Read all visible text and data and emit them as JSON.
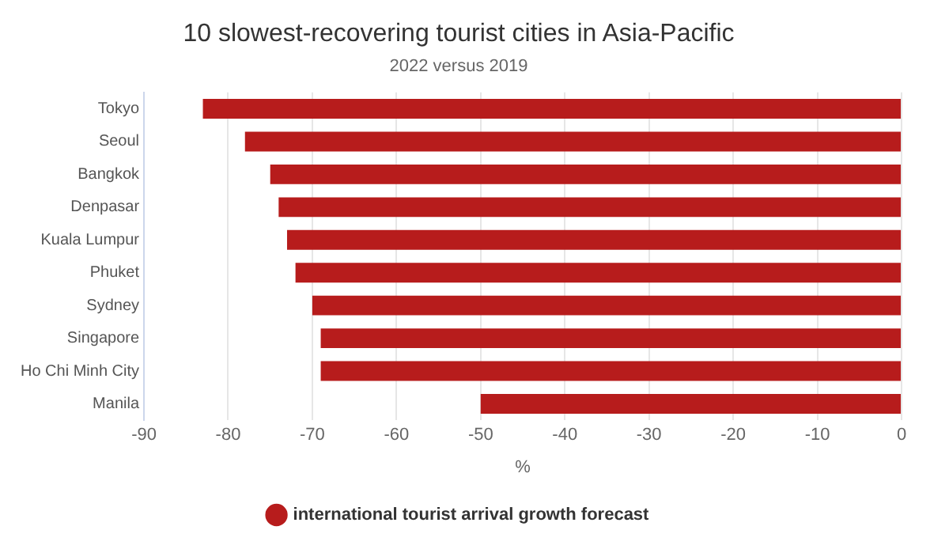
{
  "chart_data": {
    "type": "bar",
    "orientation": "horizontal",
    "title": "10 slowest-recovering tourist cities in Asia-Pacific",
    "subtitle": "2022 versus 2019",
    "xlabel": "%",
    "categories": [
      "Tokyo",
      "Seoul",
      "Bangkok",
      "Denpasar",
      "Kuala Lumpur",
      "Phuket",
      "Sydney",
      "Singapore",
      "Ho Chi Minh City",
      "Manila"
    ],
    "series": [
      {
        "name": "international tourist arrival growth forecast",
        "color": "#b71c1c",
        "values": [
          -83,
          -78,
          -75,
          -74,
          -73,
          -72,
          -70,
          -69,
          -69,
          -50
        ]
      }
    ],
    "xlim": [
      -90,
      0
    ],
    "xticks": [
      -90,
      -80,
      -70,
      -60,
      -50,
      -40,
      -30,
      -20,
      -10,
      0
    ],
    "grid": "x",
    "legend": "bottom"
  }
}
